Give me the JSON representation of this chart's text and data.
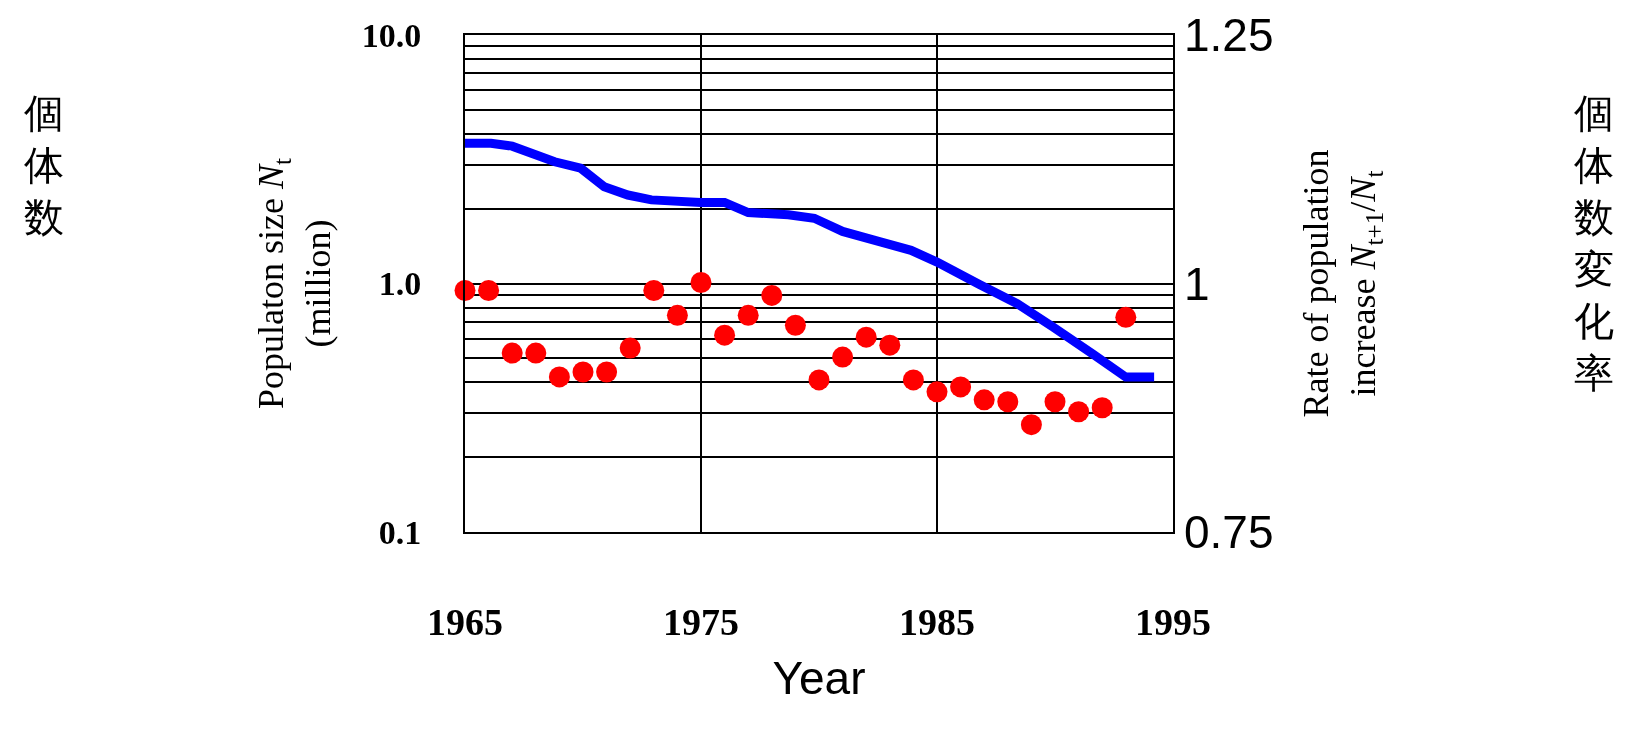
{
  "chart_data": {
    "type": "line",
    "xlabel": "Year",
    "ylabel": "Populaton size N$_{t}$\n(million)",
    "y2label": "Rate of population\nincrease N$_{t+1}$/N$_{t}$",
    "annotations": [
      "個体数",
      "個体数変化率"
    ],
    "log": "y",
    "grid": true,
    "xlim": [
      1965,
      1995
    ],
    "xticks": [
      1965,
      1975,
      1985,
      1995
    ],
    "ylim": [
      0.1,
      10
    ],
    "yticks": [
      {
        "value": 0.1,
        "label": "0.1"
      },
      {
        "value": 0.2,
        "label": null
      },
      {
        "value": 0.3,
        "label": null
      },
      {
        "value": 0.4,
        "label": null
      },
      {
        "value": 0.5,
        "label": null
      },
      {
        "value": 0.6,
        "label": null
      },
      {
        "value": 0.7,
        "label": null
      },
      {
        "value": 0.8,
        "label": null
      },
      {
        "value": 0.9,
        "label": null
      },
      {
        "value": 1,
        "label": "1.0"
      },
      {
        "value": 2,
        "label": null
      },
      {
        "value": 3,
        "label": null
      },
      {
        "value": 4,
        "label": null
      },
      {
        "value": 5,
        "label": null
      },
      {
        "value": 6,
        "label": null
      },
      {
        "value": 7,
        "label": null
      },
      {
        "value": 8,
        "label": null
      },
      {
        "value": 9,
        "label": null
      },
      {
        "value": 10,
        "label": "10.0"
      }
    ],
    "y2lim": [
      0.75,
      1.25
    ],
    "y2ticks": [
      0.75,
      1,
      1.25
    ],
    "series": [
      {
        "color": "#0000ff",
        "marker": "none",
        "line_style": "solid",
        "x": [
          1965,
          1966.1,
          1967,
          1968.8,
          1969.9,
          1970.9,
          1971.9,
          1972.9,
          1975,
          1976,
          1977,
          1978.7,
          1979.8,
          1980.7,
          1981,
          1982.6,
          1983.9,
          1985,
          1986.8,
          1988.4,
          1989.9,
          1991.6,
          1993,
          1994.2
        ],
        "values": [
          3.67,
          3.67,
          3.57,
          3.09,
          2.91,
          2.45,
          2.27,
          2.17,
          2.12,
          2.12,
          1.93,
          1.89,
          1.83,
          1.67,
          1.62,
          1.47,
          1.36,
          1.22,
          0.99,
          0.83,
          0.67,
          0.52,
          0.42,
          0.42
        ]
      },
      {
        "type": "scatter",
        "axis": "y2",
        "color": "#ff0000",
        "marker": "circle",
        "x": [
          1965,
          1966,
          1967,
          1968,
          1969,
          1970,
          1971,
          1972,
          1973,
          1974,
          1975,
          1976,
          1977,
          1978,
          1979,
          1980,
          1981,
          1982,
          1983,
          1984,
          1985,
          1986,
          1987,
          1988,
          1989,
          1990,
          1991,
          1992,
          1993
        ],
        "values": [
          0.993,
          0.993,
          0.93,
          0.93,
          0.906,
          0.911,
          0.911,
          0.935,
          0.993,
          0.968,
          1.001,
          0.948,
          0.968,
          0.988,
          0.958,
          0.903,
          0.926,
          0.946,
          0.938,
          0.903,
          0.891,
          0.896,
          0.883,
          0.881,
          0.858,
          0.881,
          0.871,
          0.875,
          0.966
        ]
      }
    ]
  }
}
